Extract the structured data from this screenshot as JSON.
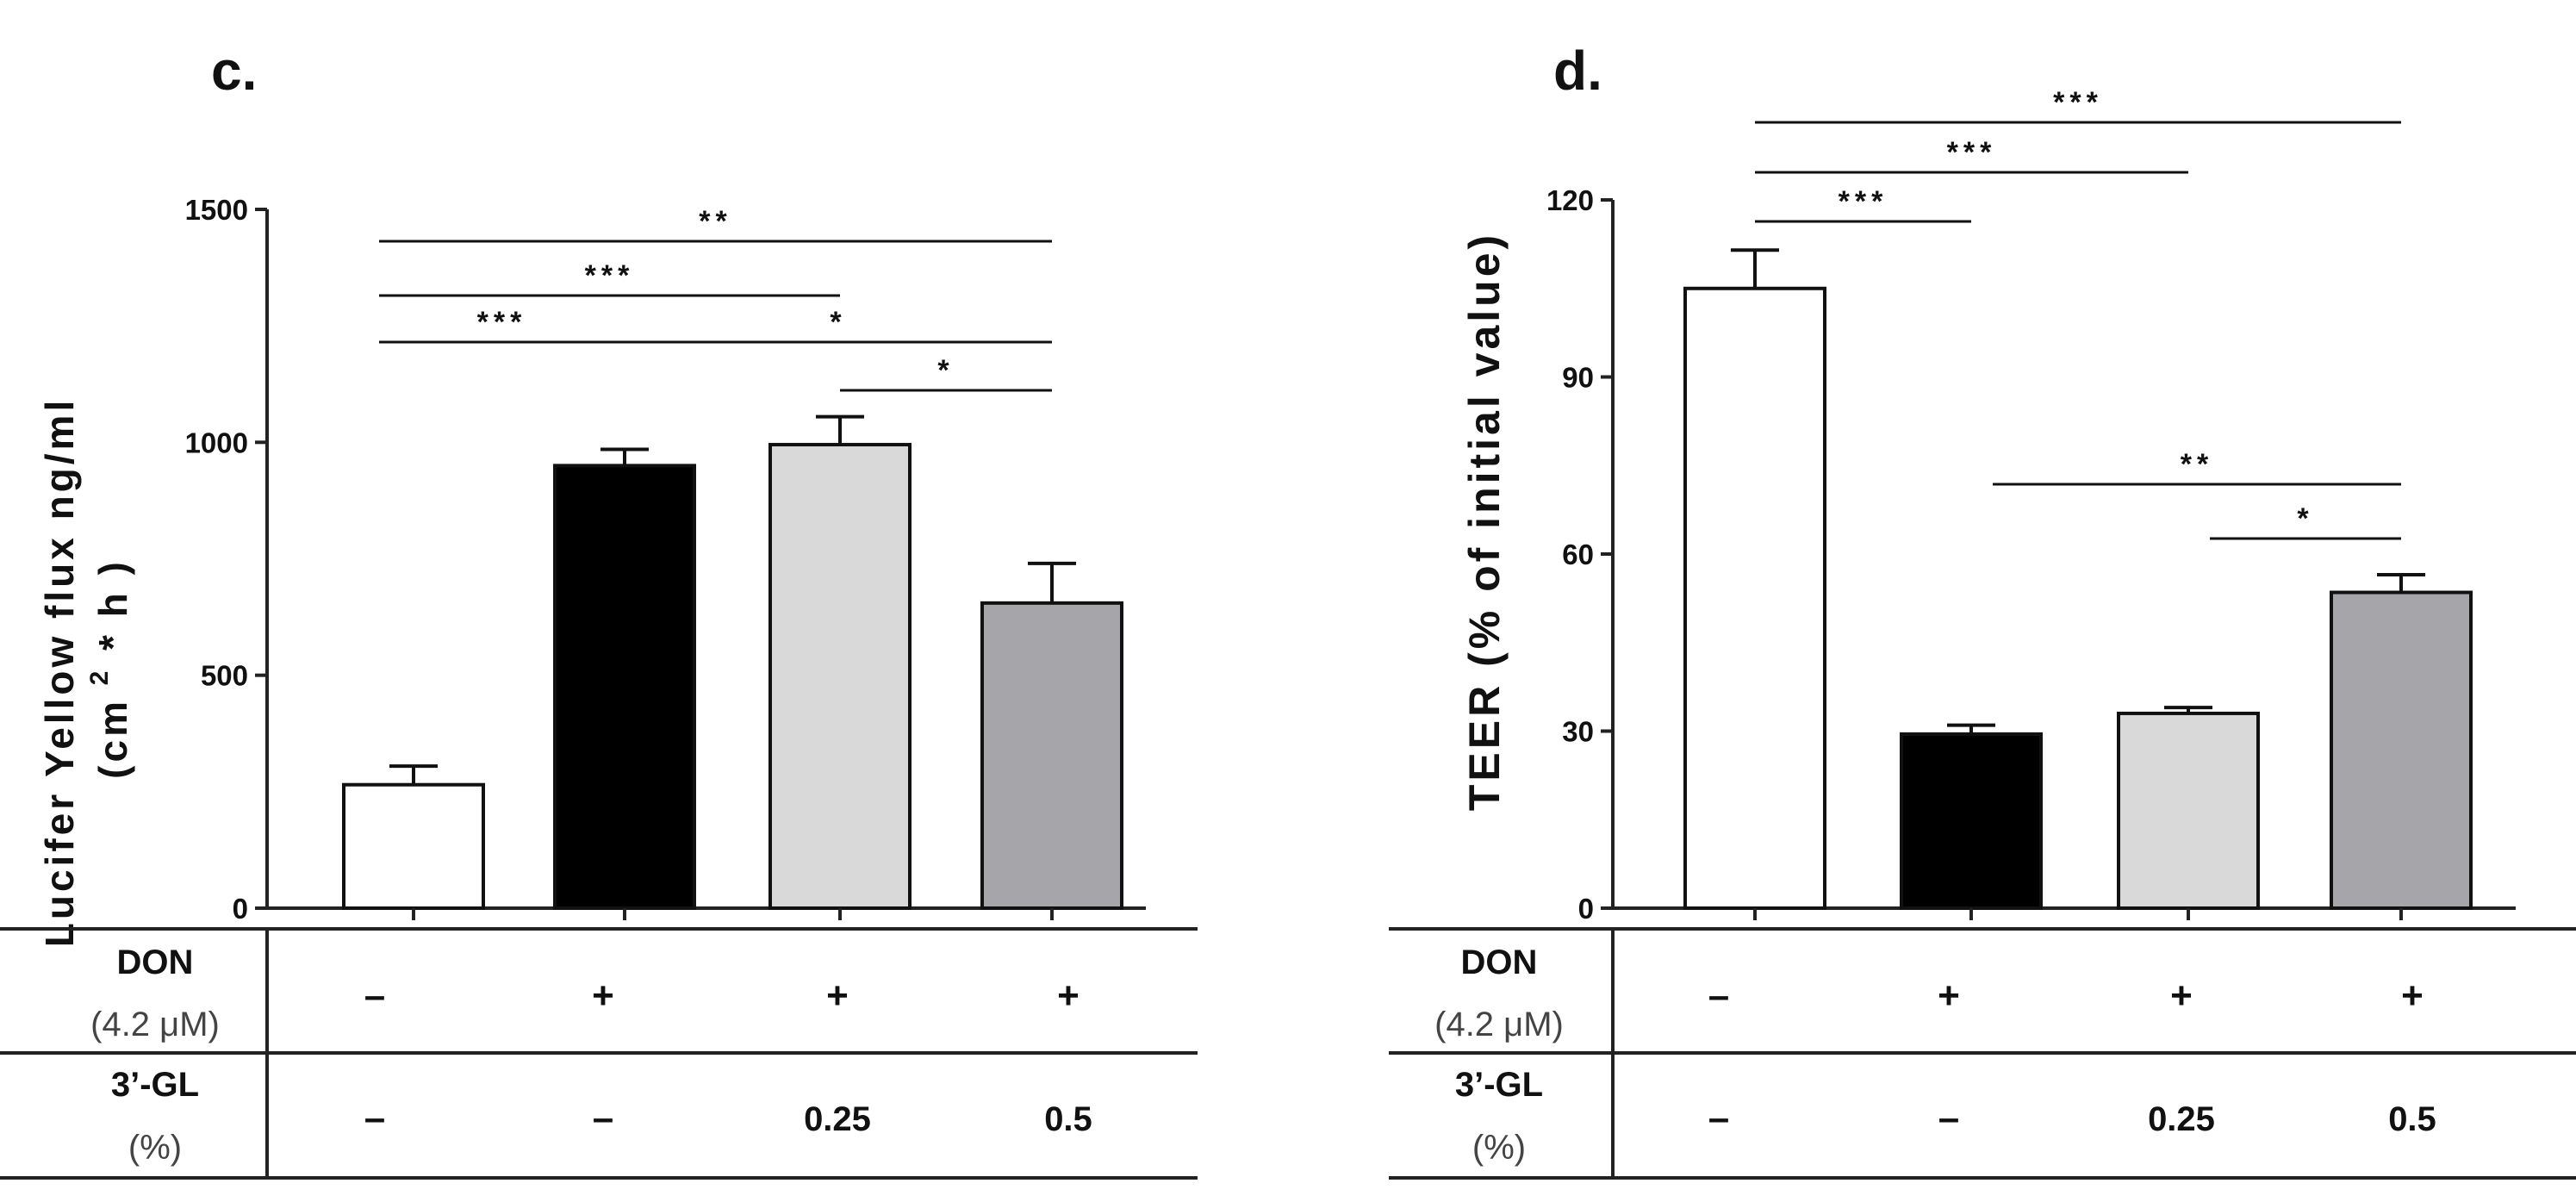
{
  "chart_data": [
    {
      "type": "bar",
      "panel": "c.",
      "ylabel": "Lucifer Yellow flux ng/ml",
      "ylabel_line2_pre": "(cm",
      "ylabel_line2_sup": "2",
      "ylabel_line2_post": "* h )",
      "ylim": [
        0,
        1500
      ],
      "yticks": [
        0,
        500,
        1000,
        1500
      ],
      "categories": [
        "DON –, 3'-GL –",
        "DON +, 3'-GL –",
        "DON +, 3'-GL 0.25",
        "DON +, 3'-GL 0.5"
      ],
      "values": [
        265,
        950,
        995,
        655
      ],
      "errors": [
        40,
        35,
        60,
        85
      ],
      "bar_colors": [
        "#ffffff",
        "#000000",
        "#d9d9d9",
        "#a6a5aa"
      ],
      "significance": [
        {
          "from": 0,
          "to": 3,
          "label": "**"
        },
        {
          "from": 0,
          "to": 2,
          "label": "***"
        },
        {
          "from": 0,
          "to": 1,
          "label": "***"
        },
        {
          "from": 1,
          "to": 3,
          "label": "*"
        },
        {
          "from": 2,
          "to": 3,
          "label": "*"
        }
      ]
    },
    {
      "type": "bar",
      "panel": "d.",
      "ylabel": "TEER (% of initial value)",
      "ylim": [
        0,
        120
      ],
      "yticks": [
        0,
        30,
        60,
        90,
        120
      ],
      "categories": [
        "DON –, 3'-GL –",
        "DON +, 3'-GL –",
        "DON +, 3'-GL 0.25",
        "DON +, 3'-GL 0.5"
      ],
      "values": [
        105,
        29.5,
        33,
        53.5
      ],
      "errors": [
        6.5,
        1.5,
        1,
        3
      ],
      "bar_colors": [
        "#ffffff",
        "#000000",
        "#d9d9d9",
        "#a6a5aa"
      ],
      "significance": [
        {
          "from": 0,
          "to": 3,
          "label": "***"
        },
        {
          "from": 0,
          "to": 2,
          "label": "***"
        },
        {
          "from": 0,
          "to": 1,
          "label": "***"
        },
        {
          "from": 1,
          "to": 3,
          "label": "**"
        },
        {
          "from": 2,
          "to": 3,
          "label": "*"
        }
      ]
    }
  ],
  "tables": [
    {
      "row1_head": "DON",
      "row1_sub": "(4.2 μM)",
      "row1_values": [
        "–",
        "+",
        "+",
        "+"
      ],
      "row2_head": "3’-GL",
      "row2_sub": "(%)",
      "row2_values": [
        "–",
        "–",
        "0.25",
        "0.5"
      ]
    },
    {
      "row1_head": "DON",
      "row1_sub": "(4.2 μM)",
      "row1_values": [
        "–",
        "+",
        "+",
        "+"
      ],
      "row2_head": "3’-GL",
      "row2_sub": "(%)",
      "row2_values": [
        "–",
        "–",
        "0.25",
        "0.5"
      ]
    }
  ]
}
